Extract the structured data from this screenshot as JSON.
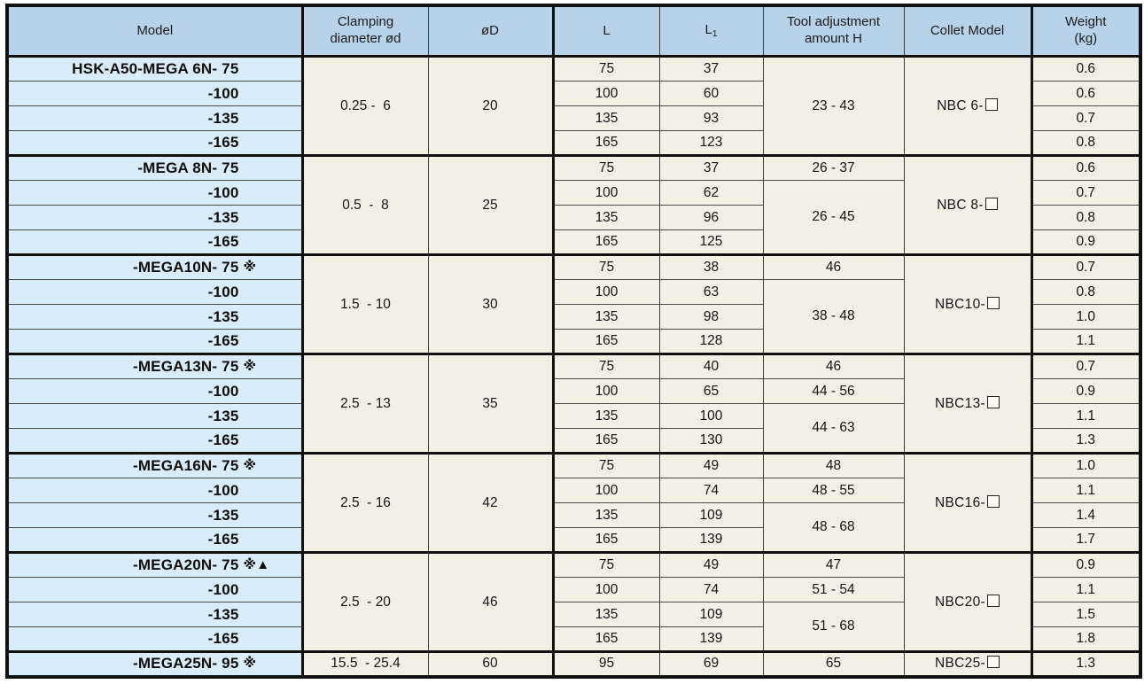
{
  "header": {
    "model": "Model",
    "clamping": "Clamping\ndiameter ød",
    "d": "øD",
    "l": "L",
    "l1_main": "L",
    "l1_sub": "1",
    "h": "Tool adjustment\namount H",
    "collet": "Collet Model",
    "weight": "Weight\n(kg)"
  },
  "legend_symbols": {
    "note": "※",
    "triangle": "▲",
    "collet_box": "□"
  },
  "colors": {
    "header_bg": "#b8d2ea",
    "model_bg": "#d8edf9",
    "cell_bg": "#f2f0e5",
    "border": "#101010"
  },
  "groups": [
    {
      "models": [
        {
          "t": "HSK-A50-MEGA 6N- 75",
          "s": ""
        },
        {
          "t": "-100",
          "s": ""
        },
        {
          "t": "-135",
          "s": ""
        },
        {
          "t": "-165",
          "s": ""
        }
      ],
      "clamp": "0.25 -  6",
      "d": "20",
      "l": [
        "75",
        "100",
        "135",
        "165"
      ],
      "l1": [
        "37",
        "60",
        "93",
        "123"
      ],
      "h": [
        {
          "t": "23 - 43"
        }
      ],
      "collet": "NBC 6-",
      "w": [
        "0.6",
        "0.6",
        "0.7",
        "0.8"
      ]
    },
    {
      "models": [
        {
          "t": "-MEGA 8N- 75",
          "s": ""
        },
        {
          "t": "-100",
          "s": ""
        },
        {
          "t": "-135",
          "s": ""
        },
        {
          "t": "-165",
          "s": ""
        }
      ],
      "clamp": "0.5  -  8",
      "d": "25",
      "l": [
        "75",
        "100",
        "135",
        "165"
      ],
      "l1": [
        "37",
        "62",
        "96",
        "125"
      ],
      "h": [
        {
          "t": "26 - 37"
        },
        {
          "t": "26 - 45"
        }
      ],
      "collet": "NBC 8-",
      "w": [
        "0.6",
        "0.7",
        "0.8",
        "0.9"
      ]
    },
    {
      "models": [
        {
          "t": "-MEGA10N- 75",
          "s": "※"
        },
        {
          "t": "-100",
          "s": ""
        },
        {
          "t": "-135",
          "s": ""
        },
        {
          "t": "-165",
          "s": ""
        }
      ],
      "clamp": "1.5  - 10",
      "d": "30",
      "l": [
        "75",
        "100",
        "135",
        "165"
      ],
      "l1": [
        "38",
        "63",
        "98",
        "128"
      ],
      "h": [
        {
          "t": "46"
        },
        {
          "t": "38 - 48"
        }
      ],
      "collet": "NBC10-",
      "w": [
        "0.7",
        "0.8",
        "1.0",
        "1.1"
      ]
    },
    {
      "models": [
        {
          "t": "-MEGA13N- 75",
          "s": "※"
        },
        {
          "t": "-100",
          "s": ""
        },
        {
          "t": "-135",
          "s": ""
        },
        {
          "t": "-165",
          "s": ""
        }
      ],
      "clamp": "2.5  - 13",
      "d": "35",
      "l": [
        "75",
        "100",
        "135",
        "165"
      ],
      "l1": [
        "40",
        "65",
        "100",
        "130"
      ],
      "h": [
        {
          "t": "46"
        },
        {
          "t": "44 - 56"
        },
        {
          "t": "44 - 63"
        }
      ],
      "collet": "NBC13-",
      "w": [
        "0.7",
        "0.9",
        "1.1",
        "1.3"
      ]
    },
    {
      "models": [
        {
          "t": "-MEGA16N- 75",
          "s": "※"
        },
        {
          "t": "-100",
          "s": ""
        },
        {
          "t": "-135",
          "s": ""
        },
        {
          "t": "-165",
          "s": ""
        }
      ],
      "clamp": "2.5  - 16",
      "d": "42",
      "l": [
        "75",
        "100",
        "135",
        "165"
      ],
      "l1": [
        "49",
        "74",
        "109",
        "139"
      ],
      "h": [
        {
          "t": "48"
        },
        {
          "t": "48 - 55"
        },
        {
          "t": "48 - 68"
        }
      ],
      "collet": "NBC16-",
      "w": [
        "1.0",
        "1.1",
        "1.4",
        "1.7"
      ]
    },
    {
      "models": [
        {
          "t": "-MEGA20N- 75",
          "s": "※▲"
        },
        {
          "t": "-100",
          "s": ""
        },
        {
          "t": "-135",
          "s": ""
        },
        {
          "t": "-165",
          "s": ""
        }
      ],
      "clamp": "2.5  - 20",
      "d": "46",
      "l": [
        "75",
        "100",
        "135",
        "165"
      ],
      "l1": [
        "49",
        "74",
        "109",
        "139"
      ],
      "h": [
        {
          "t": "47"
        },
        {
          "t": "51 - 54"
        },
        {
          "t": "51 - 68"
        }
      ],
      "collet": "NBC20-",
      "w": [
        "0.9",
        "1.1",
        "1.5",
        "1.8"
      ]
    },
    {
      "models": [
        {
          "t": "-MEGA25N- 95",
          "s": "※"
        }
      ],
      "clamp": "15.5  - 25.4",
      "d": "60",
      "l": [
        "95"
      ],
      "l1": [
        "69"
      ],
      "h": [
        {
          "t": "65"
        }
      ],
      "collet": "NBC25-",
      "w": [
        "1.3"
      ]
    }
  ]
}
